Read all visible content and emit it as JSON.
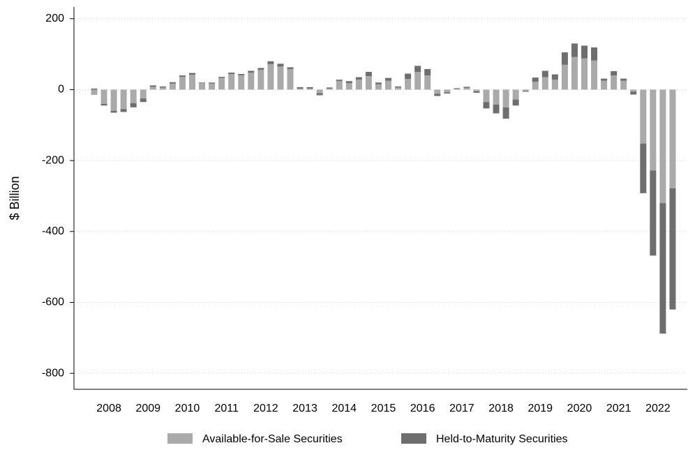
{
  "chart_data": {
    "type": "stacked_bar",
    "ylabel": "$ Billion",
    "categories": [
      null,
      "2008",
      null,
      null,
      null,
      "2009",
      null,
      null,
      null,
      "2010",
      null,
      null,
      null,
      "2011",
      null,
      null,
      null,
      "2012",
      null,
      null,
      null,
      "2013",
      null,
      null,
      null,
      "2014",
      null,
      null,
      null,
      "2015",
      null,
      null,
      null,
      "2016",
      null,
      null,
      null,
      "2017",
      null,
      null,
      null,
      "2018",
      null,
      null,
      null,
      "2019",
      null,
      null,
      null,
      "2020",
      null,
      null,
      null,
      "2021",
      null,
      null,
      null,
      "2022",
      null,
      null
    ],
    "series": [
      {
        "name": "Available-for-Sale Securities",
        "color": "#aaaaaa",
        "values": [
          -15,
          -40,
          -60,
          -55,
          -38,
          -25,
          8,
          6,
          17,
          36,
          42,
          18,
          17,
          33,
          44,
          40,
          48,
          56,
          72,
          65,
          58,
          3,
          3,
          -10,
          3,
          24,
          18,
          28,
          38,
          15,
          25,
          6,
          30,
          50,
          40,
          -12,
          -8,
          2,
          5,
          -5,
          -35,
          -42,
          -50,
          -28,
          -4,
          22,
          35,
          28,
          70,
          92,
          88,
          82,
          25,
          40,
          25,
          -6,
          -152,
          -228,
          -320,
          -278
        ]
      },
      {
        "name": "Held-to-Maturity Securities",
        "color": "#6e6e6e",
        "values": [
          3,
          -5,
          -5,
          -8,
          -12,
          -10,
          4,
          3,
          4,
          4,
          5,
          2,
          3,
          3,
          4,
          4,
          5,
          5,
          8,
          8,
          5,
          4,
          4,
          -6,
          3,
          4,
          6,
          7,
          12,
          5,
          8,
          3,
          15,
          17,
          18,
          -6,
          -3,
          2,
          3,
          -4,
          -18,
          -25,
          -32,
          -17,
          -2,
          12,
          18,
          15,
          35,
          38,
          36,
          37,
          6,
          12,
          6,
          -8,
          -140,
          -240,
          -368,
          -342
        ]
      }
    ],
    "ylim": [
      -845,
      233
    ],
    "yticks": [
      200,
      0,
      -200,
      -400,
      -600,
      -800
    ],
    "grid": true,
    "legend": "bottom"
  }
}
